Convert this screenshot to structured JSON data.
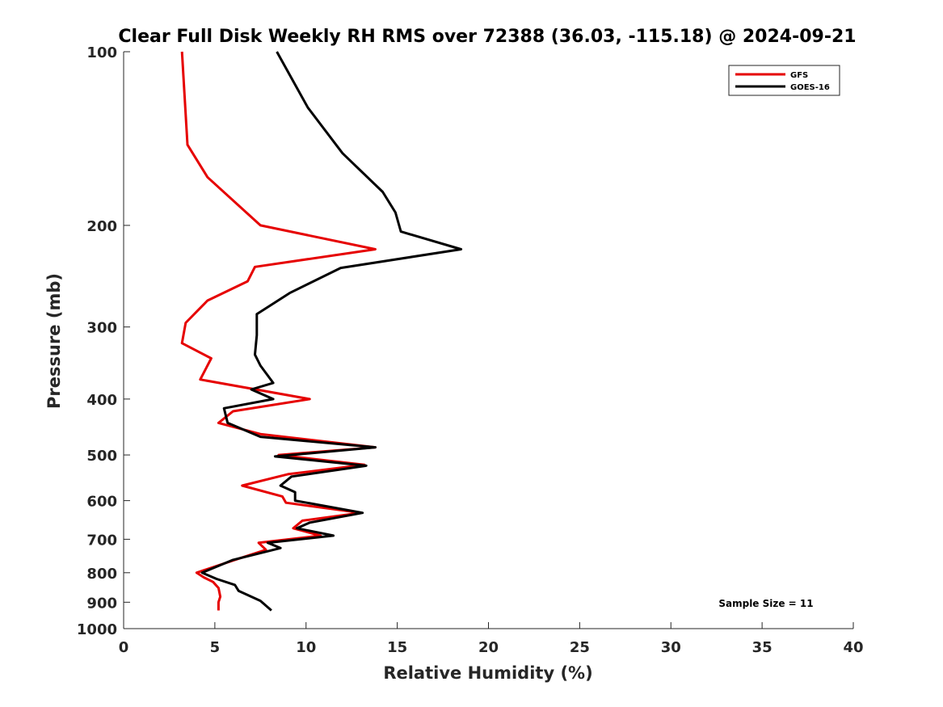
{
  "chart_data": {
    "type": "line",
    "title": "Clear Full Disk Weekly RH RMS over 72388 (36.03, -115.18) @ 2024-09-21",
    "xlabel": "Relative Humidity (%)",
    "ylabel": "Pressure (mb)",
    "xlim": [
      0,
      40
    ],
    "ylim": [
      100,
      1000
    ],
    "y_scale": "log",
    "y_reversed": true,
    "grid": false,
    "legend_position": "top-right",
    "x_ticks": [
      0,
      5,
      10,
      15,
      20,
      25,
      30,
      35,
      40
    ],
    "y_ticks": [
      100,
      200,
      300,
      400,
      500,
      600,
      700,
      800,
      900,
      1000
    ],
    "annotation": "Sample Size = 11",
    "series": [
      {
        "name": "GFS",
        "color": "#e60000",
        "x": [
          3.2,
          3.5,
          4.6,
          7.5,
          13.8,
          7.2,
          6.8,
          4.6,
          3.4,
          3.2,
          4.8,
          4.2,
          10.2,
          6.0,
          5.2,
          7.5,
          13.8,
          8.5,
          13.2,
          9.0,
          6.5,
          8.7,
          8.9,
          13.0,
          9.8,
          9.3,
          10.8,
          7.4,
          7.8,
          6.1,
          4.0,
          4.4,
          4.9,
          5.2,
          5.3,
          5.2,
          5.2
        ],
        "y": [
          100,
          145,
          165,
          200,
          220,
          236,
          250,
          270,
          295,
          320,
          340,
          370,
          400,
          420,
          440,
          460,
          485,
          500,
          520,
          540,
          565,
          590,
          605,
          630,
          650,
          670,
          690,
          710,
          730,
          760,
          800,
          815,
          830,
          850,
          880,
          900,
          930
        ]
      },
      {
        "name": "GOES-16",
        "color": "#000000",
        "x": [
          8.4,
          10.1,
          12.0,
          14.2,
          14.9,
          15.2,
          18.5,
          11.9,
          9.1,
          7.3,
          7.3,
          7.2,
          7.5,
          8.2,
          7.0,
          8.2,
          5.5,
          5.7,
          7.5,
          13.8,
          8.3,
          13.3,
          9.2,
          8.6,
          9.4,
          9.4,
          13.1,
          10.2,
          9.5,
          11.5,
          7.9,
          8.6,
          6.0,
          4.3,
          5.1,
          6.1,
          6.3,
          7.5,
          8.1
        ],
        "y": [
          100,
          125,
          150,
          175,
          190,
          205,
          220,
          237,
          262,
          285,
          310,
          335,
          350,
          375,
          385,
          400,
          415,
          440,
          465,
          485,
          503,
          522,
          545,
          565,
          580,
          600,
          630,
          655,
          670,
          690,
          710,
          725,
          760,
          800,
          820,
          840,
          860,
          895,
          930
        ]
      }
    ]
  }
}
